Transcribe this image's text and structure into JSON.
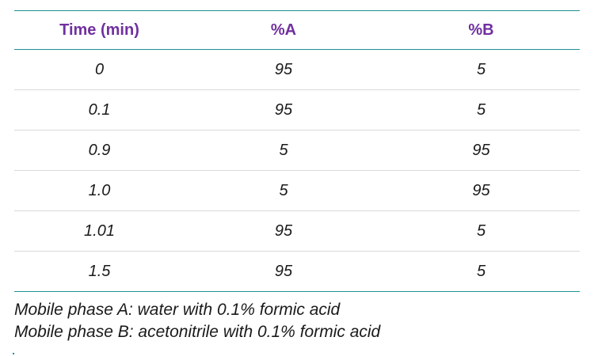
{
  "table": {
    "headers": [
      "Time (min)",
      "%A",
      "%B"
    ],
    "rows": [
      [
        "0",
        "95",
        "5"
      ],
      [
        "0.1",
        "95",
        "5"
      ],
      [
        "0.9",
        "5",
        "95"
      ],
      [
        "1.0",
        "5",
        "95"
      ],
      [
        "1.01",
        "95",
        "5"
      ],
      [
        "1.5",
        "95",
        "5"
      ]
    ]
  },
  "notes": [
    "Mobile phase A: water with 0.1% formic acid",
    "Mobile phase B: acetonitrile with 0.1% formic acid"
  ],
  "colors": {
    "header_text": "#7030a0",
    "rule": "#1f8f92",
    "row_divider": "#d9d9d9"
  }
}
